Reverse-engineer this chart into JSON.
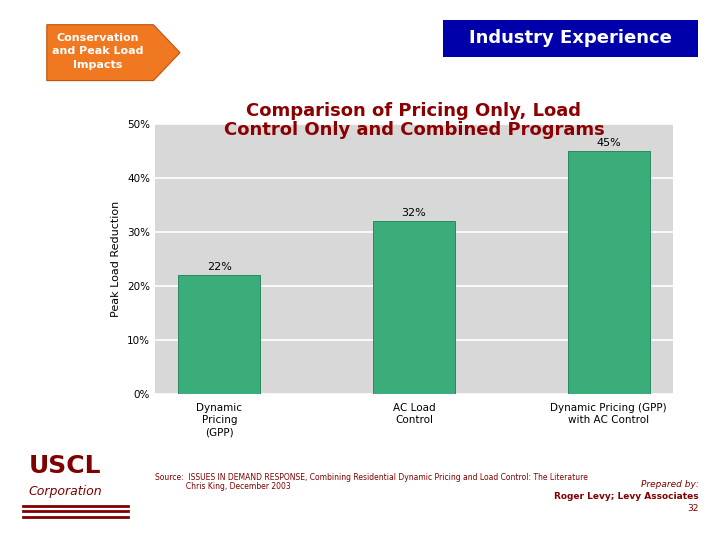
{
  "title_line1": "Comparison of Pricing Only, Load",
  "title_line2": "Control Only and Combined Programs",
  "title_color": "#8B0000",
  "title_fontsize": 13,
  "categories": [
    "Dynamic\nPricing\n(GPP)",
    "AC Load\nControl",
    "Dynamic Pricing (GPP)\nwith AC Control"
  ],
  "values": [
    22,
    32,
    45
  ],
  "bar_color": "#3aad7a",
  "bar_edgecolor": "#2a8a5a",
  "ylabel": "Peak Load Reduction",
  "ylabel_fontsize": 8,
  "ylim": [
    0,
    50
  ],
  "yticks": [
    0,
    10,
    20,
    30,
    40,
    50
  ],
  "ytick_labels": [
    "0%",
    "10%",
    "20%",
    "30%",
    "40%",
    "50%"
  ],
  "value_labels": [
    "22%",
    "32%",
    "45%"
  ],
  "value_label_fontsize": 8,
  "bg_color": "#ffffff",
  "plot_bg_color": "#d8d8d8",
  "grid_color": "#ffffff",
  "header_box_color": "#0000aa",
  "header_text": "Industry Experience",
  "header_text_color": "#ffffff",
  "header_fontsize": 13,
  "arrow_color": "#f07820",
  "arrow_text": "Conservation\nand Peak Load\nImpacts",
  "arrow_text_color": "#ffffff",
  "arrow_fontsize": 8,
  "source_line1": "Source:  ISSUES IN DEMAND RESPONSE, Combining Residential Dynamic Pricing and Load Control: The Literature",
  "source_line2": "             Chris King, December 2003",
  "source_fontsize": 5.5,
  "source_color": "#800000",
  "uscl_text": "USCL",
  "corp_text": "Corporation",
  "uscl_fontsize": 18,
  "corp_fontsize": 9,
  "uscl_color": "#800000",
  "prepared_text": "Prepared by:",
  "prepared_text2": "Roger Levy; Levy Associates",
  "page_num": "32",
  "footer_fontsize": 6.5,
  "footer_color": "#800000"
}
